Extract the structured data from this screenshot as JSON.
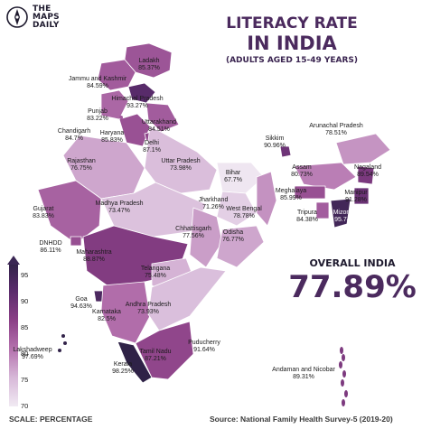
{
  "brand": {
    "line1": "THE",
    "line2": "MAPS",
    "line3": "DAILY"
  },
  "title": {
    "line1": "LITERACY RATE",
    "line2": "IN INDIA",
    "subtitle": "(ADULTS AGED 15-49 YEARS)"
  },
  "overall": {
    "label": "OVERALL INDIA",
    "value": "77.89%"
  },
  "footer": {
    "scale": "SCALE: PERCENTAGE",
    "source": "Source: National Family Health Survey-5 (2019-20)"
  },
  "colors": {
    "dark": "#3b2654",
    "mid": "#8a3f86",
    "light": "#eee4f0",
    "accent": "#4b2a5e"
  },
  "legend": {
    "ticks": [
      "95",
      "90",
      "85",
      "80",
      "75",
      "70"
    ],
    "min": 70,
    "max": 95
  },
  "regions": [
    {
      "name": "Ladakh",
      "value": "85.37%",
      "v": 85.37
    },
    {
      "name": "Jammu and Kashmir",
      "value": "84.59%",
      "v": 84.59
    },
    {
      "name": "Himachal Pradesh",
      "value": "93.27%",
      "v": 93.27
    },
    {
      "name": "Punjab",
      "value": "83.22%",
      "v": 83.22
    },
    {
      "name": "Uttarakhand",
      "value": "84.51%",
      "v": 84.51
    },
    {
      "name": "Chandigarh",
      "value": "84.7%",
      "v": 84.7
    },
    {
      "name": "Haryana",
      "value": "85.83%",
      "v": 85.83
    },
    {
      "name": "Delhi",
      "value": "87.1%",
      "v": 87.1
    },
    {
      "name": "Rajasthan",
      "value": "76.75%",
      "v": 76.75
    },
    {
      "name": "Uttar Pradesh",
      "value": "73.98%",
      "v": 73.98
    },
    {
      "name": "Bihar",
      "value": "67.7%",
      "v": 67.7
    },
    {
      "name": "Sikkim",
      "value": "90.96%",
      "v": 90.96
    },
    {
      "name": "Arunachal Pradesh",
      "value": "78.51%",
      "v": 78.51
    },
    {
      "name": "Assam",
      "value": "80.73%",
      "v": 80.73
    },
    {
      "name": "Nagaland",
      "value": "89.54%",
      "v": 89.54
    },
    {
      "name": "Meghalaya",
      "value": "85.99%",
      "v": 85.99
    },
    {
      "name": "Manipur",
      "value": "91.28%",
      "v": 91.28
    },
    {
      "name": "Tripura",
      "value": "84.38%",
      "v": 84.38
    },
    {
      "name": "Mizoram",
      "value": "95.74%",
      "v": 95.74
    },
    {
      "name": "Gujarat",
      "value": "83.83%",
      "v": 83.83
    },
    {
      "name": "Madhya Pradesh",
      "value": "73.47%",
      "v": 73.47
    },
    {
      "name": "Jharkhand",
      "value": "71.26%",
      "v": 71.26
    },
    {
      "name": "West Bengal",
      "value": "78.78%",
      "v": 78.78
    },
    {
      "name": "Chhattisgarh",
      "value": "77.56%",
      "v": 77.56
    },
    {
      "name": "Odisha",
      "value": "76.77%",
      "v": 76.77
    },
    {
      "name": "DNHDD",
      "value": "86.11%",
      "v": 86.11
    },
    {
      "name": "Maharashtra",
      "value": "88.87%",
      "v": 88.87
    },
    {
      "name": "Telangana",
      "value": "75.48%",
      "v": 75.48
    },
    {
      "name": "Goa",
      "value": "94.63%",
      "v": 94.63
    },
    {
      "name": "Karnataka",
      "value": "82.5%",
      "v": 82.5
    },
    {
      "name": "Andhra Pradesh",
      "value": "73.93%",
      "v": 73.93
    },
    {
      "name": "Puducherry",
      "value": "91.64%",
      "v": 91.64
    },
    {
      "name": "Lakshadweep",
      "value": "97.69%",
      "v": 97.69
    },
    {
      "name": "Kerala",
      "value": "98.25%",
      "v": 98.25
    },
    {
      "name": "Tamil Nadu",
      "value": "87.21%",
      "v": 87.21
    },
    {
      "name": "Andaman and Nicobar",
      "value": "89.31%",
      "v": 89.31
    }
  ]
}
